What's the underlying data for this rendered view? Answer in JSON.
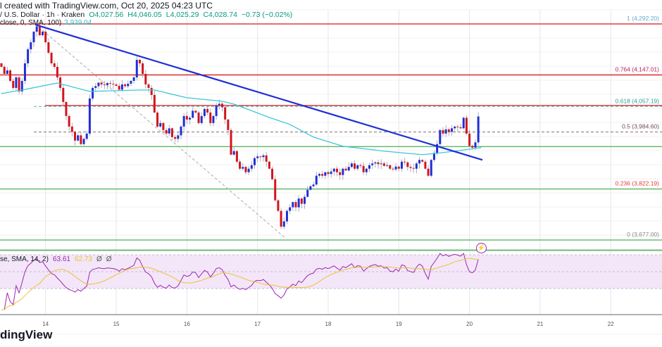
{
  "header": {
    "text": "l created with TradingView.com, Oct 20, 2025 04:23 UTC"
  },
  "legend": {
    "symbol": "/ U.S. Dollar · 1h · Kraken",
    "open": "O4,027.56",
    "high": "H4,046.05",
    "low": "L4,025.29",
    "close": "C4,028.74",
    "change": "−0.73 (−0.02%)",
    "sma_label": "close, 0, SMA, 100)",
    "sma_value": "3,939.04"
  },
  "rsi_legend": {
    "label": "se, SMA, 14, 2)",
    "rsi": "63.61",
    "rsi_sma": "62.73",
    "e1": "Ø",
    "e2": "Ø"
  },
  "logo": {
    "text": "dingView"
  },
  "colors": {
    "up": "#1f2fd6",
    "down": "#d3141c",
    "trend": "#1f2fd6",
    "sma": "#3cc7d8",
    "rsi": "#9c27b0",
    "rsi_sma": "#edc236"
  },
  "chart_data": {
    "type": "candlestick",
    "timeframe": "1h",
    "first_open": 4180,
    "closes": [
      4170,
      4150,
      4160,
      4130,
      4110,
      4140,
      4100,
      4130,
      4180,
      4220,
      4240,
      4270,
      4285,
      4260,
      4270,
      4240,
      4210,
      4180,
      4170,
      4140,
      4110,
      4070,
      4030,
      4000,
      3985,
      3960,
      3975,
      3950,
      3965,
      3980,
      4080,
      4110,
      4115,
      4125,
      4120,
      4118,
      4124,
      4122,
      4120,
      4116,
      4105,
      4120,
      4115,
      4122,
      4130,
      4140,
      4190,
      4180,
      4150,
      4120,
      4110,
      4090,
      4040,
      4000,
      4010,
      3990,
      3980,
      3995,
      3970,
      3965,
      3975,
      4000,
      4030,
      4020,
      4025,
      4045,
      4040,
      4010,
      4030,
      4050,
      4040,
      4010,
      4030,
      4060,
      4065,
      4055,
      4020,
      3990,
      3920,
      3930,
      3900,
      3880,
      3885,
      3870,
      3880,
      3890,
      3910,
      3915,
      3913,
      3918,
      3900,
      3880,
      3850,
      3790,
      3760,
      3715,
      3730,
      3760,
      3770,
      3785,
      3770,
      3795,
      3780,
      3800,
      3820,
      3830,
      3835,
      3860,
      3865,
      3860,
      3870,
      3865,
      3872,
      3880,
      3870,
      3862,
      3880,
      3875,
      3885,
      3895,
      3880,
      3890,
      3888,
      3870,
      3880,
      3890,
      3895,
      3898,
      3893,
      3895,
      3888,
      3890,
      3880,
      3878,
      3886,
      3880,
      3900,
      3898,
      3885,
      3882,
      3880,
      3895,
      3905,
      3900,
      3880,
      3860,
      3905,
      3925,
      3950,
      3990,
      3980,
      3992,
      3985,
      3995,
      4000,
      3998,
      3995,
      4025,
      3980,
      3945,
      3940,
      3955,
      4028.74
    ],
    "sma100_points": [
      [
        0,
        4094
      ],
      [
        7,
        4104
      ],
      [
        19,
        4124
      ],
      [
        30,
        4100
      ],
      [
        47,
        4104
      ],
      [
        52,
        4104
      ],
      [
        63,
        4082
      ],
      [
        75,
        4072
      ],
      [
        79,
        4064
      ],
      [
        91,
        4026
      ],
      [
        98,
        4006
      ],
      [
        106,
        3970
      ],
      [
        116,
        3944
      ],
      [
        130,
        3930
      ],
      [
        143,
        3920
      ],
      [
        148,
        3924
      ],
      [
        154,
        3930
      ],
      [
        163,
        3940
      ]
    ],
    "trendline": [
      [
        11.5,
        4290
      ],
      [
        163.4,
        3905
      ]
    ],
    "fib_diagonal": [
      [
        14,
        4274
      ],
      [
        96.4,
        3683
      ]
    ],
    "fib_levels": [
      {
        "ratio": "1",
        "price": 4292.2,
        "label": "1 (4,292.20)",
        "color": "#5fa8d3"
      },
      {
        "ratio": "0.764",
        "price": 4147.01,
        "label": "0.764 (4,147.01)",
        "color": "#c2185b"
      },
      {
        "ratio": "0.618",
        "price": 4057.19,
        "label": "0.618 (4,057.19)",
        "color": "#26a69a"
      },
      {
        "ratio": "0.5",
        "price": 3984.6,
        "label": "0.5 (3,984.60)",
        "color": "#6d4c5a"
      },
      {
        "ratio": "0.236",
        "price": 3822.19,
        "label": "0.236 (3,822.19)",
        "color": "#e53935"
      },
      {
        "ratio": "0",
        "price": 3677.0,
        "label": "0 (3,677.00)",
        "color": "#888888"
      }
    ],
    "red_lines": [
      4292.2,
      4147.01,
      4060
    ],
    "green_lines": [
      3943,
      3822.19,
      3677,
      3648
    ],
    "x_ticks": [
      {
        "index": 15,
        "label": "14"
      },
      {
        "index": 39,
        "label": "15"
      },
      {
        "index": 63,
        "label": "16"
      },
      {
        "index": 87,
        "label": "17"
      },
      {
        "index": 111,
        "label": "18"
      },
      {
        "index": 135,
        "label": "19"
      },
      {
        "index": 159,
        "label": "20"
      },
      {
        "index": 183,
        "label": "21"
      },
      {
        "index": 207,
        "label": "22"
      }
    ],
    "rsi": {
      "length": 14,
      "sma_length": 14,
      "upper": 70,
      "lower": 30
    }
  }
}
